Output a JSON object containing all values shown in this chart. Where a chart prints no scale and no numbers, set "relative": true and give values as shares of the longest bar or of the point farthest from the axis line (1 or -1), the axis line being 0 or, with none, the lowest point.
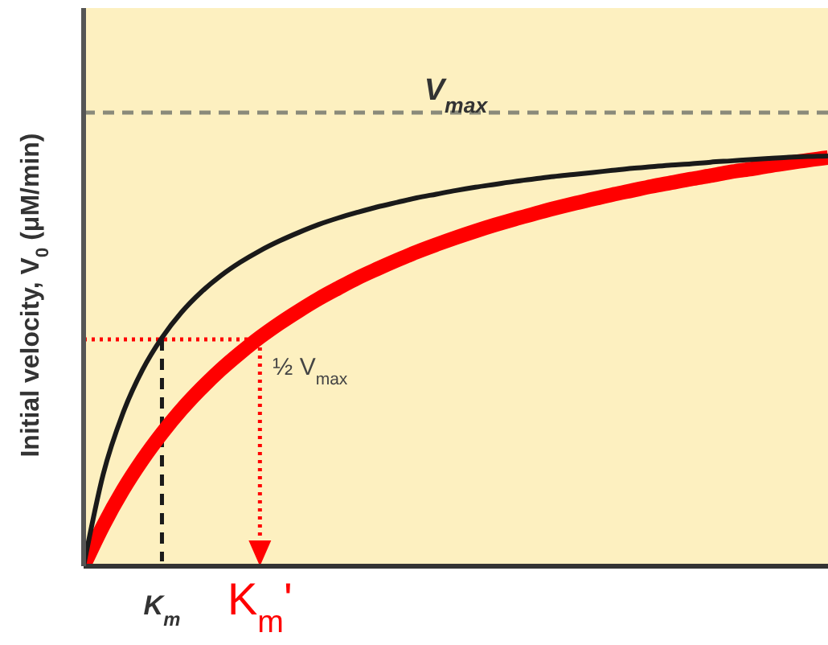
{
  "chart_data": {
    "type": "line",
    "ylabel": "Initial velocity, V$_{0}$ (μM/min)",
    "relative": true,
    "categories": [
      null,
      null,
      null,
      null,
      "K$_{m}$",
      null,
      null,
      null,
      null,
      "K$_{m}$'",
      null,
      null,
      null,
      null,
      null,
      null,
      null,
      null,
      null,
      null,
      null,
      null,
      null,
      null,
      null,
      null,
      null,
      null,
      null,
      null,
      null,
      null,
      null,
      null,
      null,
      null,
      null,
      null,
      null
    ],
    "series": [
      {
        "color": "#1a1a1a",
        "values": [
          0,
          0.224,
          0.372,
          0.478,
          0.557,
          0.619,
          0.668,
          0.708,
          0.741,
          0.769,
          0.793,
          0.814,
          0.833,
          0.849,
          0.863,
          0.876,
          0.887,
          0.898,
          0.907,
          0.916,
          0.924,
          0.931,
          0.938,
          0.944,
          0.95,
          0.955,
          0.96,
          0.965,
          0.97,
          0.974,
          0.978,
          0.981,
          0.985,
          0.988,
          0.991,
          0.994,
          0.997,
          0.999,
          1.0
        ]
      },
      {
        "color": "#ff0000",
        "values": [
          0,
          0.099,
          0.185,
          0.259,
          0.324,
          0.382,
          0.433,
          0.479,
          0.52,
          0.558,
          0.592,
          0.623,
          0.652,
          0.678,
          0.703,
          0.725,
          0.746,
          0.766,
          0.784,
          0.801,
          0.817,
          0.832,
          0.846,
          0.859,
          0.872,
          0.884,
          0.895,
          0.906,
          0.916,
          0.926,
          0.935,
          0.944,
          0.952,
          0.961,
          0.968,
          0.976,
          0.983,
          0.99,
          0.996
        ]
      }
    ],
    "ref_lines": [
      {
        "axis": "y",
        "value": 1.106,
        "label": "V$_{max}$",
        "color": "#8a8a7a",
        "line_style": "dashed"
      },
      {
        "axis": "y",
        "value": 0.553,
        "label": "½ V$_{max}$",
        "color": "#ff0000",
        "line_style": "dotted"
      },
      {
        "axis": "x",
        "value": "K$_{m}$",
        "color": "#1a1a1a",
        "line_style": "dashed"
      },
      {
        "axis": "x",
        "value": "K$_{m}$'",
        "color": "#ff0000",
        "line_style": "dotted"
      }
    ],
    "grid": false,
    "line_style": "solid"
  }
}
